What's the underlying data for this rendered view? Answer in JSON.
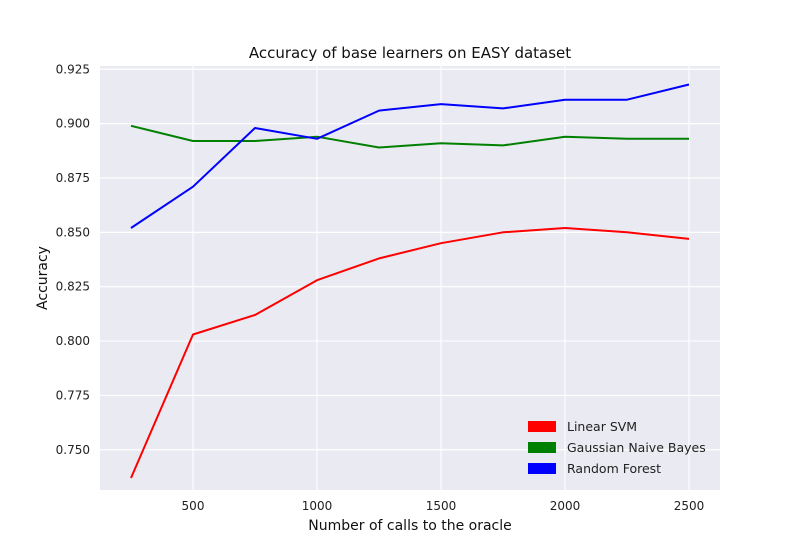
{
  "chart_data": {
    "type": "line",
    "title": "Accuracy of base learners on EASY dataset",
    "xlabel": "Number of calls to the oracle",
    "ylabel": "Accuracy",
    "x": [
      250,
      500,
      750,
      1000,
      1250,
      1500,
      1750,
      2000,
      2250,
      2500
    ],
    "xlim": [
      125,
      2625
    ],
    "ylim": [
      0.7315,
      0.9265
    ],
    "xticks": [
      500,
      1000,
      1500,
      2000,
      2500
    ],
    "yticks": [
      0.75,
      0.775,
      0.8,
      0.825,
      0.85,
      0.875,
      0.9,
      0.925
    ],
    "xtick_labels": [
      "500",
      "1000",
      "1500",
      "2000",
      "2500"
    ],
    "ytick_labels": [
      "0.750",
      "0.775",
      "0.800",
      "0.825",
      "0.850",
      "0.875",
      "0.900",
      "0.925"
    ],
    "grid": true,
    "legend_position": "bottom-right",
    "series": [
      {
        "name": "Linear SVM",
        "color": "#ff0000",
        "values": [
          0.737,
          0.803,
          0.812,
          0.828,
          0.838,
          0.845,
          0.85,
          0.852,
          0.85,
          0.847
        ]
      },
      {
        "name": "Gaussian Naive Bayes",
        "color": "#008000",
        "values": [
          0.899,
          0.892,
          0.892,
          0.894,
          0.889,
          0.891,
          0.89,
          0.894,
          0.893,
          0.893
        ]
      },
      {
        "name": "Random Forest",
        "color": "#0000ff",
        "values": [
          0.852,
          0.871,
          0.898,
          0.893,
          0.906,
          0.909,
          0.907,
          0.911,
          0.911,
          0.918
        ]
      }
    ]
  }
}
